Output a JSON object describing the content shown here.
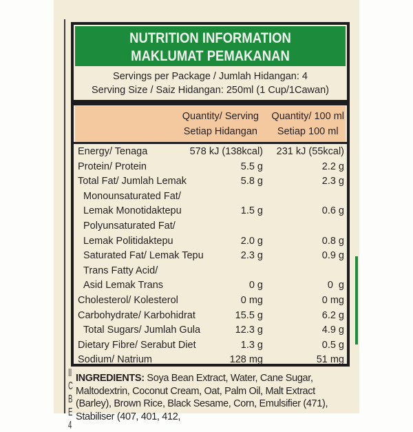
{
  "header": {
    "title_en": "NUTRITION INFORMATION",
    "title_ms": "MAKLUMAT PEMAKANAN"
  },
  "servings": {
    "per_package": "Servings per Package / Jumlah Hidangan: 4",
    "size": "Serving Size / Saiz Hidangan: 250ml (1 Cup/1Cawan)"
  },
  "columns": {
    "serving": [
      "Quantity/ Serving",
      "Setiap Hidangan"
    ],
    "per100": [
      "Quantity/ 100 ml",
      "Setiap 100 ml"
    ]
  },
  "rows": [
    {
      "label": "Energy/ Tenaga",
      "serving": "578 kJ (138kcal)",
      "per100": "231 kJ (55kcal)",
      "indent": false
    },
    {
      "label": "Protein/ Protein",
      "serving": "5.5 g",
      "per100": "2.2 g",
      "indent": false
    },
    {
      "label": "Total Fat/ Jumlah Lemak",
      "serving": "5.8 g",
      "per100": "2.3 g",
      "indent": false
    },
    {
      "label": "Monounsaturated Fat/",
      "serving": "",
      "per100": "",
      "indent": true
    },
    {
      "label": "Lemak Monotidaktepu",
      "serving": "1.5 g",
      "per100": "0.6 g",
      "indent": true
    },
    {
      "label": "Polyunsaturated Fat/",
      "serving": "",
      "per100": "",
      "indent": true
    },
    {
      "label": "Lemak Politidaktepu",
      "serving": "2.0 g",
      "per100": "0.8 g",
      "indent": true
    },
    {
      "label": "Saturated Fat/ Lemak Tepu",
      "serving": "2.3 g",
      "per100": "0.9 g",
      "indent": true
    },
    {
      "label": "Trans Fatty Acid/",
      "serving": "",
      "per100": "",
      "indent": true
    },
    {
      "label": "Asid Lemak Trans",
      "serving": "0 g",
      "per100": "0  g",
      "indent": true
    },
    {
      "label": "Cholesterol/ Kolesterol",
      "serving": "0 mg",
      "per100": "0 mg",
      "indent": false
    },
    {
      "label": "Carbohydrate/ Karbohidrat",
      "serving": "15.5 g",
      "per100": "6.2 g",
      "indent": false
    },
    {
      "label": "Total Sugars/ Jumlah Gula",
      "serving": "12.3 g",
      "per100": "4.9 g",
      "indent": true
    },
    {
      "label": "Dietary Fibre/ Serabut Diet",
      "serving": "1.3 g",
      "per100": "0.5 g",
      "indent": false
    },
    {
      "label": "Sodium/ Natrium",
      "serving": "128 mg",
      "per100": "51 mg",
      "indent": false
    }
  ],
  "ingredients": {
    "heading": "INGREDIENTS:",
    "text": " Soya Bean Extract, Water, Cane Sugar, Maltodextrin, Coconut Cream, Oat, Palm Oil, Malt Extract (Barley), Brown Rice, Black Sesame, Corn, Emulsifier (471), Stabiliser (407, 401, 412,"
  },
  "side_text": "IICBE4",
  "colors": {
    "header_green": "#1c8c3c",
    "column_header_peach": "#f5c9a0",
    "carton_cream": "#f2ecd9",
    "border": "#1c1c1e"
  }
}
